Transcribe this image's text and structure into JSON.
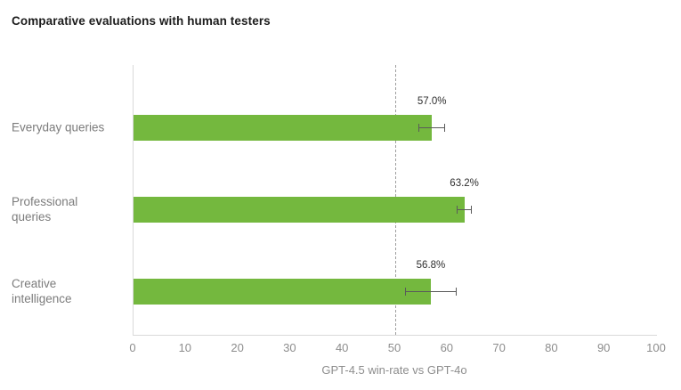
{
  "chart_data": {
    "type": "bar",
    "orientation": "horizontal",
    "title": "Comparative evaluations with human testers",
    "xlabel": "GPT-4.5 win-rate vs GPT-4o",
    "categories": [
      "Everyday queries",
      "Professional\nqueries",
      "Creative\nintelligence"
    ],
    "values": [
      57.0,
      63.2,
      56.8
    ],
    "value_labels": [
      "57.0%",
      "63.2%",
      "56.8%"
    ],
    "errors": [
      2.5,
      1.4,
      5.0
    ],
    "xlim": [
      0,
      100
    ],
    "xticks": [
      0,
      10,
      20,
      30,
      40,
      50,
      60,
      70,
      80,
      90,
      100
    ],
    "reference_line_x": 50,
    "grid": false,
    "legend": "none",
    "colors": {
      "bar": "#74b83e",
      "error_bar": "#5a5a5a",
      "reference_line": "#9e9e9e",
      "axis_line": "#d9d9d9",
      "tick_label": "#8d8d8d",
      "category_label": "#7c7c7c",
      "value_label": "#2e2e2e",
      "title": "#1c1c1c",
      "background": "#ffffff"
    }
  }
}
